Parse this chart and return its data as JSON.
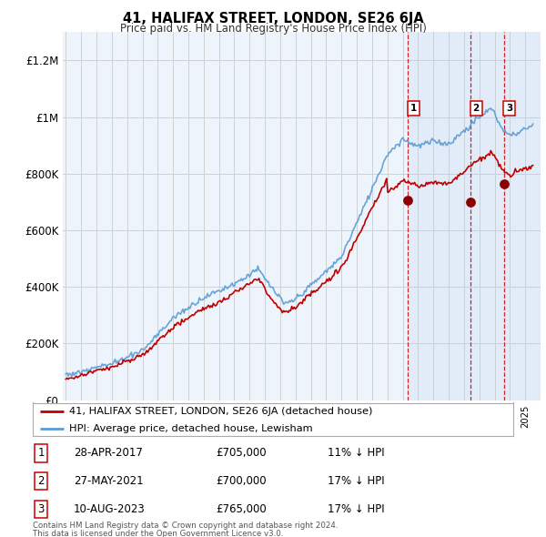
{
  "title": "41, HALIFAX STREET, LONDON, SE26 6JA",
  "subtitle": "Price paid vs. HM Land Registry's House Price Index (HPI)",
  "legend_line1": "41, HALIFAX STREET, LONDON, SE26 6JA (detached house)",
  "legend_line2": "HPI: Average price, detached house, Lewisham",
  "footer1": "Contains HM Land Registry data © Crown copyright and database right 2024.",
  "footer2": "This data is licensed under the Open Government Licence v3.0.",
  "transactions": [
    {
      "num": 1,
      "date": "28-APR-2017",
      "price": "£705,000",
      "pct": "11% ↓ HPI",
      "year": 2017.33
    },
    {
      "num": 2,
      "date": "27-MAY-2021",
      "price": "£700,000",
      "pct": "17% ↓ HPI",
      "year": 2021.42
    },
    {
      "num": 3,
      "date": "10-AUG-2023",
      "price": "£765,000",
      "pct": "17% ↓ HPI",
      "year": 2023.61
    }
  ],
  "trans_prices": [
    705000,
    700000,
    765000
  ],
  "hpi_color": "#5b9bd5",
  "price_color": "#c00000",
  "marker_color": "#8b0000",
  "vline_color": "#cc0000",
  "grid_color": "#d0d0d0",
  "background_color": "#ffffff",
  "plot_bg_color": "#eef4fb",
  "shade_color": "#ddeeff",
  "ylim": [
    0,
    1300000
  ],
  "xlim_start": 1994.8,
  "xlim_end": 2026.0,
  "yticks": [
    0,
    200000,
    400000,
    600000,
    800000,
    1000000,
    1200000
  ],
  "ytick_labels": [
    "£0",
    "£200K",
    "£400K",
    "£600K",
    "£800K",
    "£1M",
    "£1.2M"
  ]
}
